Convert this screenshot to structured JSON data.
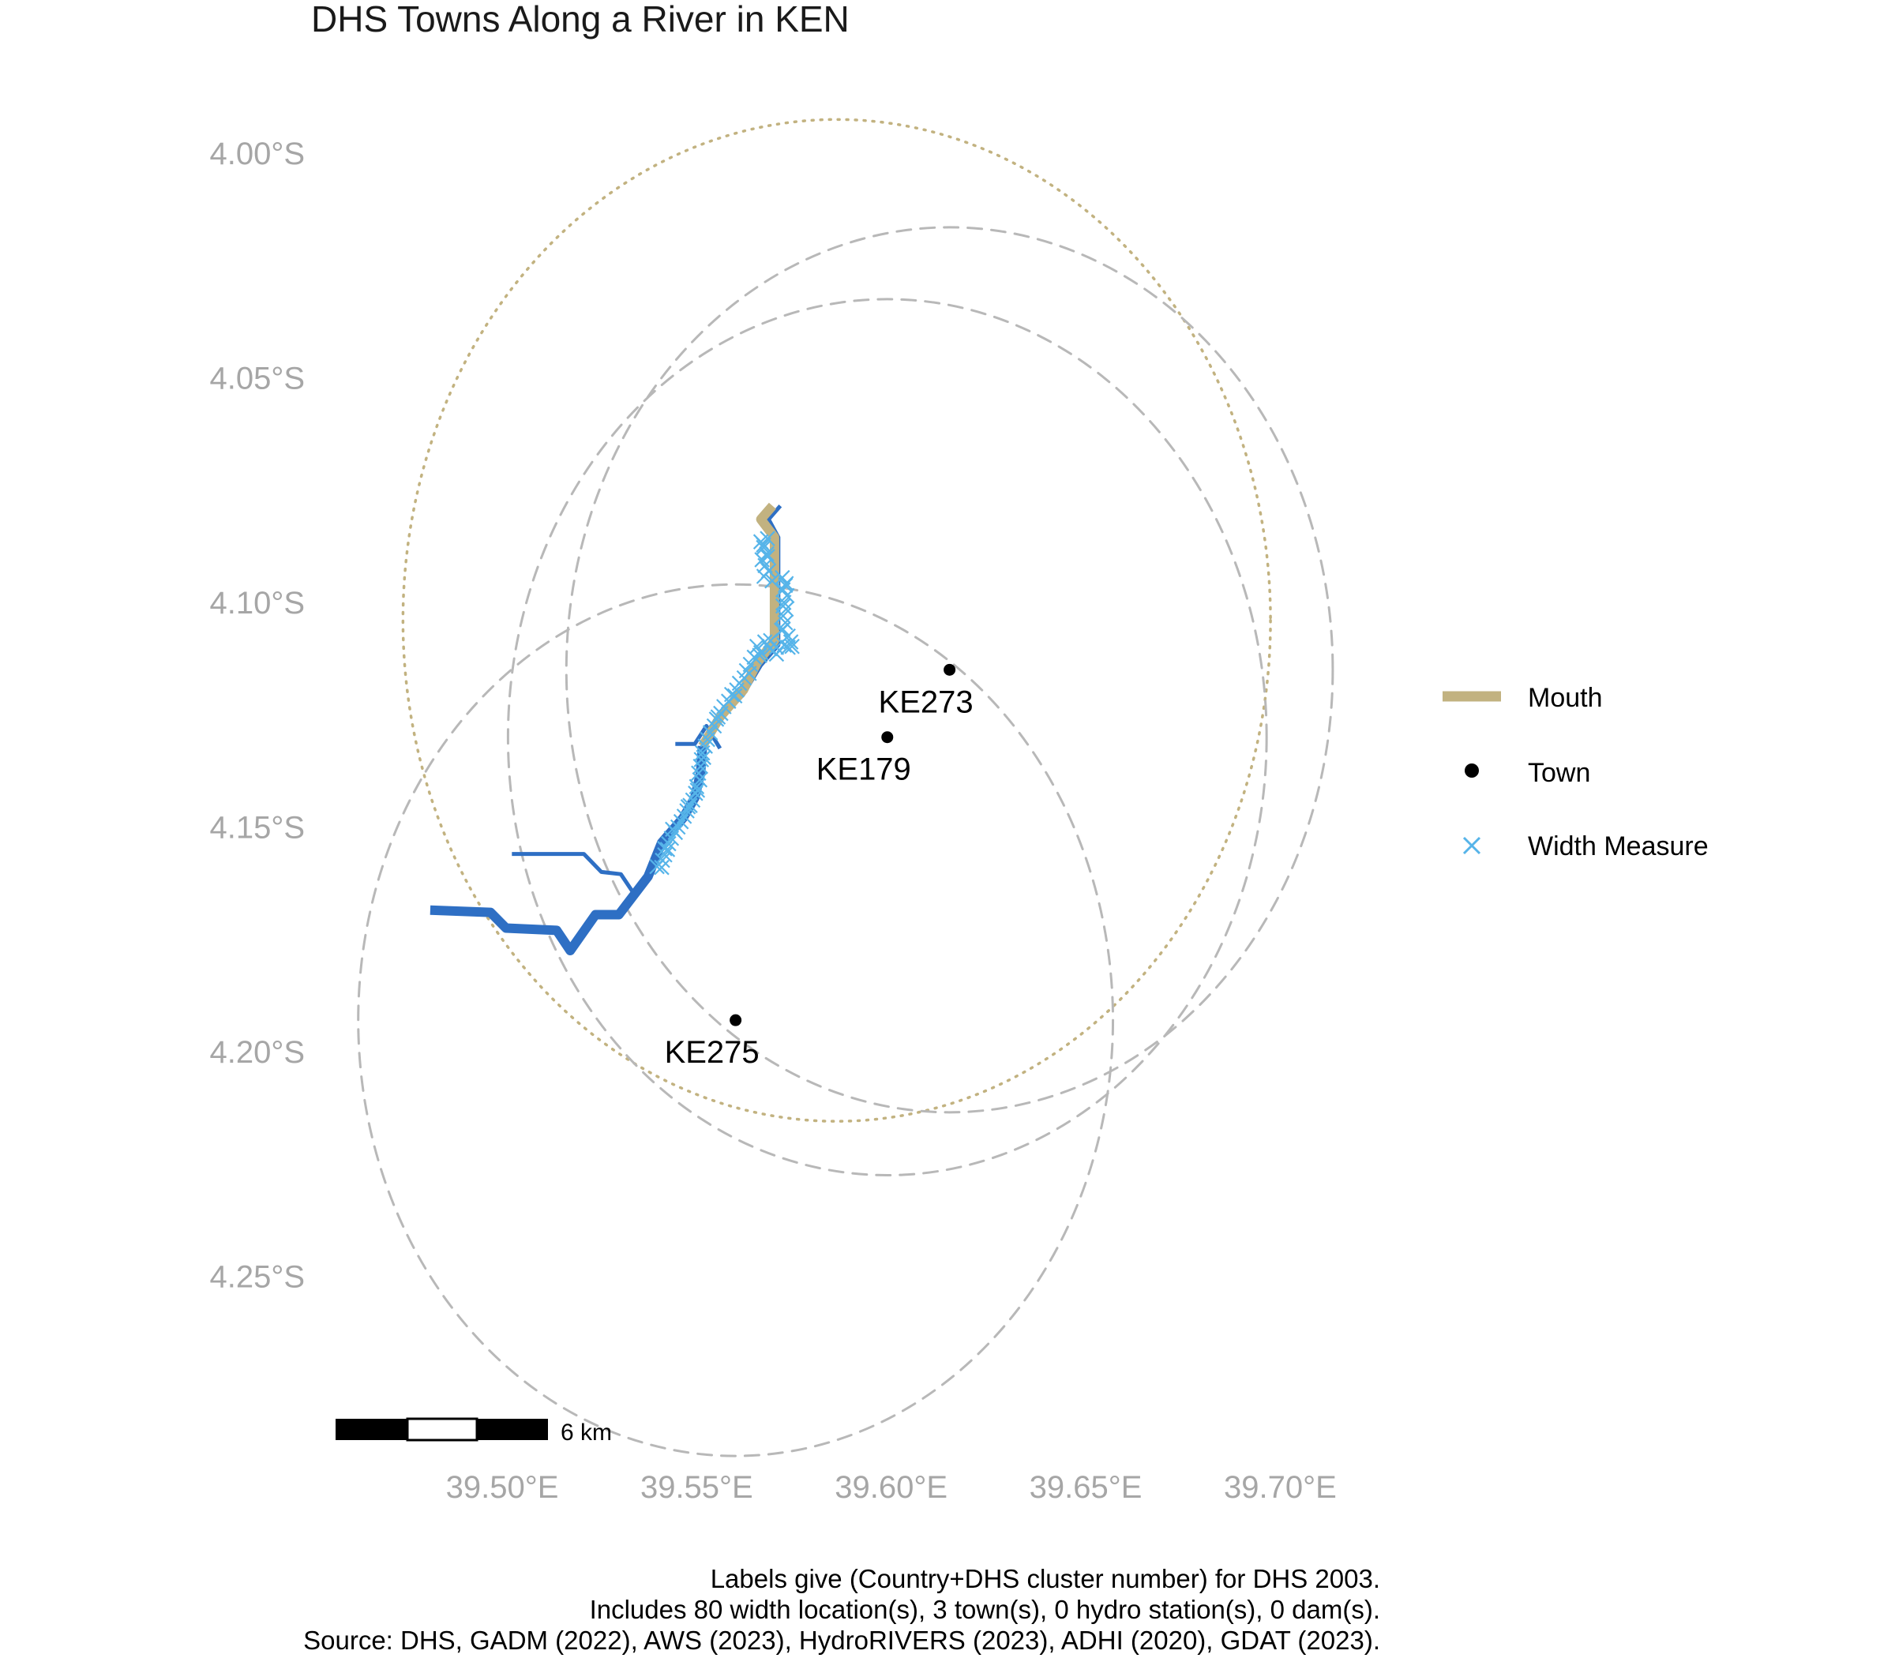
{
  "title": "DHS Towns Along a River in KEN",
  "axes": {
    "y_ticks": [
      {
        "value": -4.0,
        "label": "4.00°S"
      },
      {
        "value": -4.05,
        "label": "4.05°S"
      },
      {
        "value": -4.1,
        "label": "4.10°S"
      },
      {
        "value": -4.15,
        "label": "4.15°S"
      },
      {
        "value": -4.2,
        "label": "4.20°S"
      },
      {
        "value": -4.25,
        "label": "4.25°S"
      }
    ],
    "x_ticks": [
      {
        "value": 39.5,
        "label": "39.50°E"
      },
      {
        "value": 39.55,
        "label": "39.55°E"
      },
      {
        "value": 39.6,
        "label": "39.60°E"
      },
      {
        "value": 39.65,
        "label": "39.65°E"
      },
      {
        "value": 39.7,
        "label": "39.70°E"
      }
    ]
  },
  "towns": [
    {
      "id": "KE273",
      "label": "KE273",
      "lon": 39.615,
      "lat": -4.115
    },
    {
      "id": "KE179",
      "label": "KE179",
      "lon": 39.599,
      "lat": -4.13
    },
    {
      "id": "KE275",
      "label": "KE275",
      "lon": 39.56,
      "lat": -4.193
    }
  ],
  "buffer_circles": [
    {
      "name": "mouth-buffer",
      "style": "dotted",
      "lon": 39.586,
      "lat": -4.104,
      "r_deg": 0.1115
    },
    {
      "name": "town-buffer-ke273",
      "style": "dashed",
      "lon": 39.615,
      "lat": -4.115,
      "r_deg": 0.0985
    },
    {
      "name": "town-buffer-ke179",
      "style": "dashed",
      "lon": 39.599,
      "lat": -4.13,
      "r_deg": 0.0975
    },
    {
      "name": "town-buffer-ke275",
      "style": "dashed",
      "lon": 39.56,
      "lat": -4.193,
      "r_deg": 0.097
    }
  ],
  "rivers": [
    {
      "name": "river-main-channel",
      "width": 12,
      "coords": [
        [
          39.4815,
          -4.1685
        ],
        [
          39.497,
          -4.169
        ],
        [
          39.501,
          -4.1725
        ],
        [
          39.514,
          -4.173
        ],
        [
          39.5175,
          -4.1775
        ],
        [
          39.524,
          -4.1695
        ],
        [
          39.53,
          -4.1695
        ],
        [
          39.5375,
          -4.161
        ],
        [
          39.541,
          -4.1535
        ],
        [
          39.5465,
          -4.148
        ],
        [
          39.5495,
          -4.1435
        ],
        [
          39.551,
          -4.138
        ],
        [
          39.5515,
          -4.132
        ]
      ]
    },
    {
      "name": "river-upper-reach",
      "width": 5,
      "coords": [
        [
          39.5515,
          -4.132
        ],
        [
          39.556,
          -4.126
        ],
        [
          39.562,
          -4.1205
        ],
        [
          39.5665,
          -4.114
        ],
        [
          39.571,
          -4.1095
        ],
        [
          39.571,
          -4.0855
        ],
        [
          39.5685,
          -4.0815
        ],
        [
          39.5715,
          -4.0785
        ]
      ]
    },
    {
      "name": "river-tributary-west",
      "width": 5,
      "coords": [
        [
          39.5025,
          -4.156
        ],
        [
          39.521,
          -4.156
        ],
        [
          39.5255,
          -4.16
        ],
        [
          39.5305,
          -4.1605
        ],
        [
          39.534,
          -4.165
        ]
      ]
    },
    {
      "name": "river-tributary-north",
      "width": 5,
      "coords": [
        [
          39.5445,
          -4.1315
        ],
        [
          39.5495,
          -4.1315
        ],
        [
          39.5525,
          -4.1275
        ],
        [
          39.556,
          -4.1325
        ]
      ]
    }
  ],
  "mouth_segment": {
    "name": "mouth-river-segment",
    "coords": [
      [
        39.5515,
        -4.132
      ],
      [
        39.556,
        -4.1255
      ],
      [
        39.562,
        -4.1195
      ],
      [
        39.5655,
        -4.1135
      ],
      [
        39.57,
        -4.1085
      ],
      [
        39.57,
        -4.0855
      ],
      [
        39.5665,
        -4.0815
      ],
      [
        39.5695,
        -4.0785
      ]
    ]
  },
  "width_measures": [
    [
      39.5665,
      -4.0865
    ],
    [
      39.5672,
      -4.0878
    ],
    [
      39.568,
      -4.0892
    ],
    [
      39.5668,
      -4.0905
    ],
    [
      39.5676,
      -4.0918
    ],
    [
      39.5685,
      -4.093
    ],
    [
      39.5673,
      -4.0942
    ],
    [
      39.5694,
      -4.0952
    ],
    [
      39.572,
      -4.0945
    ],
    [
      39.573,
      -4.0958
    ],
    [
      39.5722,
      -4.0972
    ],
    [
      39.5732,
      -4.0985
    ],
    [
      39.5724,
      -4.1
    ],
    [
      39.573,
      -4.1015
    ],
    [
      39.5722,
      -4.103
    ],
    [
      39.5728,
      -4.1045
    ],
    [
      39.5722,
      -4.106
    ],
    [
      39.5735,
      -4.1075
    ],
    [
      39.5742,
      -4.1088
    ],
    [
      39.5735,
      -4.11
    ],
    [
      39.5725,
      -4.1095
    ],
    [
      39.5705,
      -4.11
    ],
    [
      39.569,
      -4.1085
    ],
    [
      39.5675,
      -4.1088
    ],
    [
      39.5655,
      -4.1098
    ],
    [
      39.5665,
      -4.1112
    ],
    [
      39.5648,
      -4.1122
    ],
    [
      39.5638,
      -4.1138
    ],
    [
      39.5628,
      -4.1152
    ],
    [
      39.5622,
      -4.1168
    ],
    [
      39.561,
      -4.118
    ],
    [
      39.5603,
      -4.1195
    ],
    [
      39.559,
      -4.1205
    ],
    [
      39.5582,
      -4.122
    ],
    [
      39.557,
      -4.1232
    ],
    [
      39.5562,
      -4.1247
    ],
    [
      39.5551,
      -4.126
    ],
    [
      39.5545,
      -4.1275
    ],
    [
      39.5535,
      -4.129
    ],
    [
      39.5528,
      -4.1305
    ],
    [
      39.5522,
      -4.132
    ],
    [
      39.5515,
      -4.1335
    ],
    [
      39.5512,
      -4.135
    ],
    [
      39.551,
      -4.1365
    ],
    [
      39.5505,
      -4.138
    ],
    [
      39.5508,
      -4.1395
    ],
    [
      39.55,
      -4.141
    ],
    [
      39.5497,
      -4.1425
    ],
    [
      39.549,
      -4.144
    ],
    [
      39.5483,
      -4.1452
    ],
    [
      39.5475,
      -4.1464
    ],
    [
      39.5468,
      -4.1476
    ],
    [
      39.546,
      -4.1488
    ],
    [
      39.5452,
      -4.15
    ],
    [
      39.5445,
      -4.1512
    ],
    [
      39.5435,
      -4.1525
    ],
    [
      39.5428,
      -4.1537
    ],
    [
      39.5425,
      -4.155
    ],
    [
      39.5418,
      -4.1562
    ],
    [
      39.5412,
      -4.1574
    ],
    [
      39.541,
      -4.159
    ],
    [
      39.5398,
      -4.1588
    ],
    [
      39.5418,
      -4.1548
    ],
    [
      39.5438,
      -4.1505
    ],
    [
      39.5478,
      -4.1455
    ],
    [
      39.5502,
      -4.1418
    ],
    [
      39.5518,
      -4.1345
    ],
    [
      39.5555,
      -4.1255
    ],
    [
      39.5598,
      -4.1208
    ],
    [
      39.5635,
      -4.1158
    ],
    [
      39.5662,
      -4.1118
    ],
    [
      39.5688,
      -4.1103
    ],
    [
      39.5718,
      -4.1062
    ],
    [
      39.5722,
      -4.1008
    ],
    [
      39.5728,
      -4.0962
    ],
    [
      39.5682,
      -4.0898
    ],
    [
      39.5672,
      -4.0872
    ],
    [
      39.5682,
      -4.0858
    ],
    [
      39.5745,
      -4.1098
    ],
    [
      39.5705,
      -4.1115
    ]
  ],
  "legend": {
    "items": [
      {
        "name": "legend-item-mouth",
        "label": "Mouth",
        "color": "#c2b280",
        "symbol": "line"
      },
      {
        "name": "legend-item-town",
        "label": "Town",
        "color": "#000000",
        "symbol": "point"
      },
      {
        "name": "legend-item-width-measure",
        "label": "Width Measure",
        "color": "#56b4e9",
        "symbol": "cross"
      }
    ]
  },
  "scale_bar": {
    "label": "6 km"
  },
  "caption": [
    "Labels give (Country+DHS cluster number) for DHS 2003.",
    "Includes 80 width location(s), 3 town(s), 0 hydro station(s), 0 dam(s).",
    "Source: DHS, GADM (2022), AWS (2023), HydroRIVERS (2023), ADHI (2020), GDAT (2023)."
  ],
  "colors": {
    "river": "#2e6fc4",
    "mouth": "#c2b280",
    "width_measure": "#56b4e9",
    "buffer": "#b8b8b8",
    "mouth_buffer": "#c2b280",
    "axis_text": "#a6a6a6"
  }
}
